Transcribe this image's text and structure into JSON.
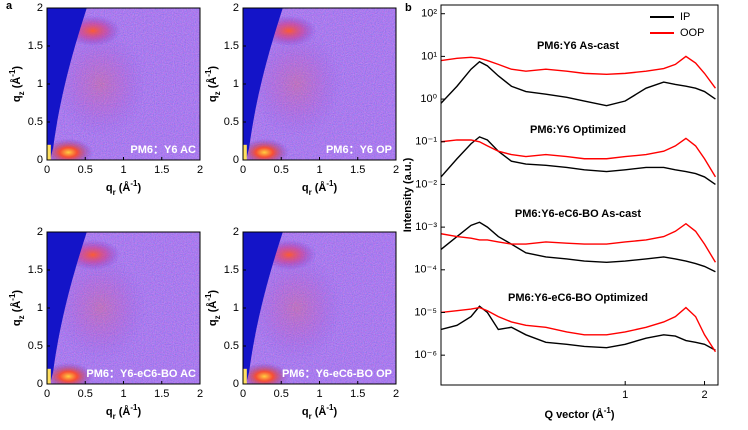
{
  "chart_data": [
    {
      "type": "heatmap",
      "panel": "a",
      "label": "PM6：Y6 AC",
      "xlim": [
        0,
        2
      ],
      "ylim": [
        0,
        2
      ],
      "xticks": [
        0,
        0.5,
        1,
        1.5,
        2
      ],
      "yticks": [
        0,
        0.5,
        1,
        1.5,
        2
      ],
      "xlabel": [
        "q",
        "r",
        " (Å",
        "-1",
        ")"
      ],
      "ylabel": [
        "q",
        "z",
        " (Å",
        "-1",
        ")"
      ]
    },
    {
      "type": "heatmap",
      "label": "PM6：Y6 OP",
      "xlim": [
        0,
        2
      ],
      "ylim": [
        0,
        2
      ],
      "xticks": [
        0,
        0.5,
        1,
        1.5,
        2
      ],
      "yticks": [
        0,
        0.5,
        1,
        1.5,
        2
      ],
      "xlabel": [
        "q",
        "r",
        " (Å",
        "-1",
        ")"
      ],
      "ylabel": [
        "q",
        "z",
        " (Å",
        "-1",
        ")"
      ]
    },
    {
      "type": "heatmap",
      "label": "PM6：Y6-eC6-BO AC",
      "xlim": [
        0,
        2
      ],
      "ylim": [
        0,
        2
      ],
      "xticks": [
        0,
        0.5,
        1,
        1.5,
        2
      ],
      "yticks": [
        0,
        0.5,
        1,
        1.5,
        2
      ],
      "xlabel": [
        "q",
        "r",
        " (Å",
        "-1",
        ")"
      ],
      "ylabel": [
        "q",
        "z",
        " (Å",
        "-1",
        ")"
      ]
    },
    {
      "type": "heatmap",
      "label": "PM6：Y6-eC6-BO OP",
      "xlim": [
        0,
        2
      ],
      "ylim": [
        0,
        2
      ],
      "xticks": [
        0,
        0.5,
        1,
        1.5,
        2
      ],
      "yticks": [
        0,
        0.5,
        1,
        1.5,
        2
      ],
      "xlabel": [
        "q",
        "r",
        " (Å",
        "-1",
        ")"
      ],
      "ylabel": [
        "q",
        "z",
        " (Å",
        "-1",
        ")"
      ]
    },
    {
      "type": "line",
      "panel": "b",
      "log_x": true,
      "log_y": true,
      "legend": "upper right",
      "xlabel": [
        "Q vector (Å",
        "-1",
        ")"
      ],
      "ylabel": "Intensity (a.u.)",
      "xlim": [
        0.2,
        2.25
      ],
      "xticks": [
        1,
        2
      ],
      "ylim": [
        2e-07,
        160
      ],
      "yticks": [
        {
          "value": 100,
          "label": "10²"
        },
        {
          "value": 10,
          "label": "10¹"
        },
        {
          "value": 1,
          "label": "10⁰"
        },
        {
          "value": 0.1,
          "label": "10⁻¹"
        },
        {
          "value": 0.01,
          "label": "10⁻²"
        },
        {
          "value": 0.001,
          "label": "10⁻³"
        },
        {
          "value": 0.0001,
          "label": "10⁻⁴"
        },
        {
          "value": 1e-05,
          "label": "10⁻⁵"
        },
        {
          "value": 1e-06,
          "label": "10⁻⁶"
        }
      ],
      "annotations": [
        "PM6:Y6 As-cast",
        "PM6:Y6 Optimized",
        "PM6:Y6-eC6-BO As-cast",
        "PM6:Y6-eC6-BO Optimized"
      ],
      "x": [
        0.2,
        0.23,
        0.26,
        0.28,
        0.3,
        0.33,
        0.37,
        0.42,
        0.5,
        0.6,
        0.7,
        0.85,
        1.0,
        1.2,
        1.4,
        1.55,
        1.7,
        1.85,
        2.0,
        2.2
      ],
      "series": [
        {
          "name": "IP",
          "color": "#000000",
          "values": [
            0.8,
            2,
            5,
            7.5,
            6,
            3.5,
            2,
            1.5,
            1.3,
            1.1,
            0.9,
            0.7,
            0.9,
            1.8,
            2.5,
            2.2,
            2,
            1.8,
            1.5,
            1
          ]
        },
        {
          "name": "OOP",
          "color": "#ff0000",
          "values": [
            8,
            9,
            9.5,
            9,
            8,
            6.5,
            5,
            4.5,
            5,
            4.5,
            4,
            3.8,
            4,
            4.5,
            5.2,
            6.5,
            10,
            7,
            4,
            1.8
          ]
        },
        {
          "name": "IP",
          "color": "#000000",
          "values": [
            0.015,
            0.04,
            0.09,
            0.13,
            0.11,
            0.06,
            0.035,
            0.03,
            0.028,
            0.025,
            0.022,
            0.02,
            0.022,
            0.025,
            0.025,
            0.022,
            0.02,
            0.018,
            0.015,
            0.01
          ]
        },
        {
          "name": "OOP",
          "color": "#ff0000",
          "values": [
            0.1,
            0.11,
            0.11,
            0.1,
            0.08,
            0.06,
            0.05,
            0.045,
            0.05,
            0.045,
            0.04,
            0.04,
            0.045,
            0.05,
            0.06,
            0.08,
            0.12,
            0.08,
            0.04,
            0.015
          ]
        },
        {
          "name": "IP",
          "color": "#000000",
          "values": [
            0.0003,
            0.0006,
            0.0011,
            0.0013,
            0.001,
            0.0006,
            0.0004,
            0.00025,
            0.0002,
            0.00018,
            0.00016,
            0.00015,
            0.00016,
            0.00018,
            0.0002,
            0.00018,
            0.00016,
            0.00014,
            0.00012,
            9e-05
          ]
        },
        {
          "name": "OOP",
          "color": "#ff0000",
          "values": [
            0.0007,
            0.0006,
            0.00055,
            0.0005,
            0.0005,
            0.00045,
            0.0004,
            0.0004,
            0.00045,
            0.00042,
            0.0004,
            0.0004,
            0.00045,
            0.0005,
            0.0006,
            0.0008,
            0.0012,
            0.0008,
            0.0004,
            0.00015
          ]
        },
        {
          "name": "IP",
          "color": "#000000",
          "values": [
            4e-06,
            5e-06,
            8e-06,
            1.4e-05,
            1e-05,
            4e-06,
            4.5e-06,
            3e-06,
            2e-06,
            1.8e-06,
            1.6e-06,
            1.5e-06,
            1.8e-06,
            2.5e-06,
            3e-06,
            2.8e-06,
            2.2e-06,
            2e-06,
            1.8e-06,
            1.3e-06
          ]
        },
        {
          "name": "OOP",
          "color": "#ff0000",
          "values": [
            1e-05,
            1.1e-05,
            1.2e-05,
            1.3e-05,
            1.1e-05,
            8e-06,
            6e-06,
            5e-06,
            4.5e-06,
            3.5e-06,
            3e-06,
            3e-06,
            3.5e-06,
            4.5e-06,
            6e-06,
            8e-06,
            1.3e-05,
            8e-06,
            3e-06,
            1.2e-06
          ]
        }
      ]
    }
  ]
}
